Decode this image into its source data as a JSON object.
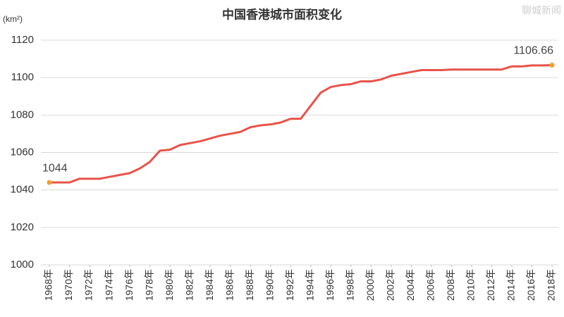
{
  "chart_data": {
    "type": "line",
    "title": "中国香港城市面积变化",
    "y_unit": "(km²)",
    "watermark": "聊城新闻",
    "x": [
      1968,
      1969,
      1970,
      1971,
      1972,
      1973,
      1974,
      1975,
      1976,
      1977,
      1978,
      1979,
      1980,
      1981,
      1982,
      1983,
      1984,
      1985,
      1986,
      1987,
      1988,
      1989,
      1990,
      1991,
      1992,
      1993,
      1994,
      1995,
      1996,
      1997,
      1998,
      1999,
      2000,
      2001,
      2002,
      2003,
      2004,
      2005,
      2006,
      2007,
      2008,
      2009,
      2010,
      2011,
      2012,
      2013,
      2014,
      2015,
      2016,
      2017,
      2018
    ],
    "series": [
      {
        "color": "#e8534a",
        "marker_color": "#f0a030",
        "values": [
          1044,
          1044,
          1044,
          1046,
          1046,
          1046,
          1047,
          1048,
          1049,
          1051.5,
          1055,
          1061,
          1061.5,
          1064,
          1065,
          1066,
          1067.5,
          1069,
          1070,
          1071,
          1073.5,
          1074.5,
          1075,
          1076,
          1078,
          1078,
          1085,
          1092,
          1095,
          1096,
          1096.5,
          1098,
          1098,
          1099,
          1101,
          1102,
          1103,
          1104,
          1104,
          1104,
          1104.3,
          1104.3,
          1104.3,
          1104.3,
          1104.3,
          1104.3,
          1106,
          1106,
          1106.5,
          1106.5,
          1106.66
        ]
      }
    ],
    "xlim": [
      1968,
      2018
    ],
    "xticks": [
      {
        "value": 1968,
        "label": "1968年"
      },
      {
        "value": 1970,
        "label": "1970年"
      },
      {
        "value": 1972,
        "label": "1972年"
      },
      {
        "value": 1974,
        "label": "1974年"
      },
      {
        "value": 1976,
        "label": "1976年"
      },
      {
        "value": 1978,
        "label": "1978年"
      },
      {
        "value": 1980,
        "label": "1980年"
      },
      {
        "value": 1982,
        "label": "1982年"
      },
      {
        "value": 1984,
        "label": "1984年"
      },
      {
        "value": 1986,
        "label": "1986年"
      },
      {
        "value": 1988,
        "label": "1988年"
      },
      {
        "value": 1990,
        "label": "1990年"
      },
      {
        "value": 1992,
        "label": "1992年"
      },
      {
        "value": 1994,
        "label": "1994年"
      },
      {
        "value": 1996,
        "label": "1996年"
      },
      {
        "value": 1998,
        "label": "1998年"
      },
      {
        "value": 2000,
        "label": "2000年"
      },
      {
        "value": 2002,
        "label": "2002年"
      },
      {
        "value": 2004,
        "label": "2004年"
      },
      {
        "value": 2006,
        "label": "2006年"
      },
      {
        "value": 2008,
        "label": "2008年"
      },
      {
        "value": 2010,
        "label": "2010年"
      },
      {
        "value": 2012,
        "label": "2012年"
      },
      {
        "value": 2014,
        "label": "2014年"
      },
      {
        "value": 2016,
        "label": "2016年"
      },
      {
        "value": 2018,
        "label": "2018年"
      }
    ],
    "ylim": [
      1000,
      1120
    ],
    "yticks": [
      1000,
      1020,
      1040,
      1060,
      1080,
      1100,
      1120
    ],
    "grid": true
  }
}
